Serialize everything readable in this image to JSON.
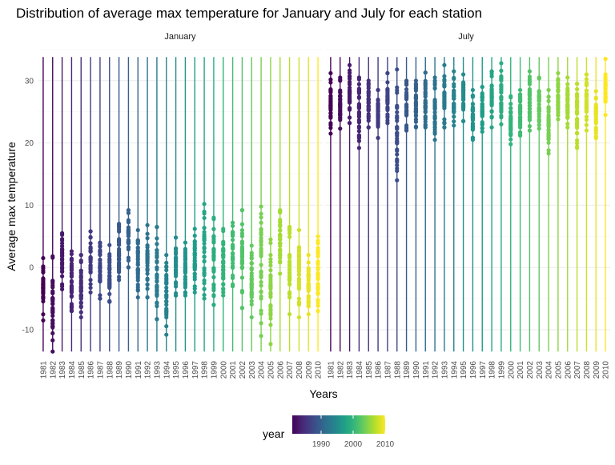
{
  "chart_data": {
    "type": "scatter",
    "title": "Distribution of average max temperature for January and July for each station",
    "xlabel": "Years",
    "ylabel": "Average max temperature",
    "panels": [
      "January",
      "July"
    ],
    "years": [
      1981,
      1982,
      1983,
      1984,
      1985,
      1986,
      1987,
      1988,
      1989,
      1990,
      1991,
      1992,
      1993,
      1994,
      1995,
      1996,
      1997,
      1998,
      1999,
      2000,
      2001,
      2002,
      2003,
      2004,
      2005,
      2006,
      2007,
      2008,
      2009,
      2010
    ],
    "ylim": [
      -14.5,
      35.5
    ],
    "yticks": [
      -10,
      0,
      10,
      20,
      30
    ],
    "legend": {
      "title": "year",
      "ticks": [
        1990,
        2000,
        2010
      ],
      "range": [
        1981,
        2010
      ],
      "colors": [
        "#440154",
        "#482878",
        "#3e4989",
        "#31688e",
        "#26828e",
        "#1f9e89",
        "#35b779",
        "#6ece58",
        "#b5de2b",
        "#fde725"
      ],
      "placement": "bottom"
    },
    "series": [
      {
        "panel": "January",
        "ranges": [
          [
            -8.5,
            1.5
          ],
          [
            -13.5,
            1.8
          ],
          [
            -3.5,
            5.5
          ],
          [
            -7,
            2.6
          ],
          [
            -8,
            2
          ],
          [
            -4,
            5.8
          ],
          [
            -5,
            4
          ],
          [
            -5.5,
            3.6
          ],
          [
            -2,
            7
          ],
          [
            0,
            9.2
          ],
          [
            -4.8,
            6
          ],
          [
            -4.8,
            6.8
          ],
          [
            -8.3,
            6.5
          ],
          [
            -10.8,
            2
          ],
          [
            -4.5,
            4.8
          ],
          [
            -4.5,
            4
          ],
          [
            -4,
            6.2
          ],
          [
            -5,
            10.2
          ],
          [
            -6,
            8
          ],
          [
            -4.5,
            6.2
          ],
          [
            -3,
            7.2
          ],
          [
            -6.5,
            9.2
          ],
          [
            -8,
            3.5
          ],
          [
            -11,
            9.8
          ],
          [
            -12.3,
            4.5
          ],
          [
            -1,
            9.2
          ],
          [
            -7.5,
            6.5
          ],
          [
            -8,
            6
          ],
          [
            -7.5,
            2
          ],
          [
            -7,
            5
          ]
        ]
      },
      {
        "panel": "July",
        "ranges": [
          [
            21.5,
            31.2
          ],
          [
            22.3,
            30.5
          ],
          [
            23.2,
            32.5
          ],
          [
            19.2,
            30.5
          ],
          [
            22.5,
            30
          ],
          [
            20.8,
            28.5
          ],
          [
            23.2,
            31.2
          ],
          [
            14,
            31.8
          ],
          [
            22,
            30
          ],
          [
            22.5,
            30
          ],
          [
            22.5,
            31.3
          ],
          [
            20.5,
            30.5
          ],
          [
            22.5,
            32.5
          ],
          [
            22.8,
            31.5
          ],
          [
            23.5,
            31
          ],
          [
            20.5,
            28.5
          ],
          [
            21.8,
            29
          ],
          [
            22.5,
            31.5
          ],
          [
            23,
            32.8
          ],
          [
            19.8,
            27.5
          ],
          [
            21.2,
            28.5
          ],
          [
            22,
            31.5
          ],
          [
            22.3,
            30.5
          ],
          [
            18.3,
            28.5
          ],
          [
            23.8,
            31.2
          ],
          [
            22.5,
            30.5
          ],
          [
            19.2,
            29.5
          ],
          [
            22,
            31
          ],
          [
            20.8,
            28.3
          ],
          [
            24.5,
            33.5
          ]
        ]
      }
    ]
  }
}
